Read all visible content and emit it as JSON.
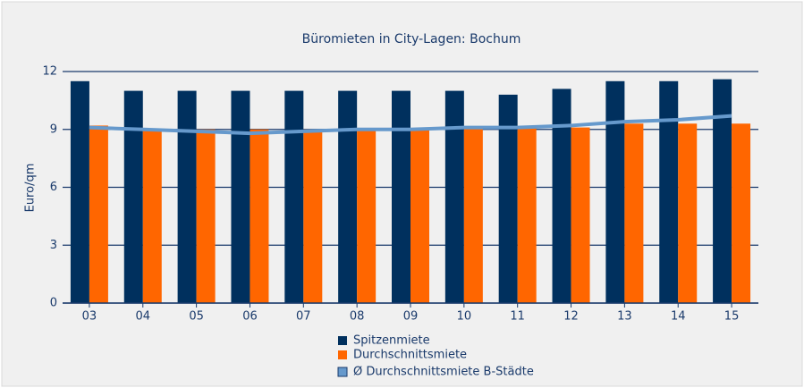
{
  "chart_data": {
    "type": "bar",
    "title": "Büromieten in City-Lagen: Bochum",
    "y_label": "Euro/qm",
    "categories": [
      "03",
      "04",
      "05",
      "06",
      "07",
      "08",
      "09",
      "10",
      "11",
      "12",
      "13",
      "14",
      "15"
    ],
    "series": [
      {
        "name": "Spitzenmiete",
        "color": "#00305e",
        "values": [
          11.5,
          11.0,
          11.0,
          11.0,
          11.0,
          11.0,
          11.0,
          11.0,
          10.8,
          11.1,
          11.5,
          11.5,
          11.6
        ]
      },
      {
        "name": "Durchschnittsmiete",
        "color": "#ff6600",
        "values": [
          9.2,
          9.0,
          9.0,
          9.0,
          9.0,
          9.0,
          9.0,
          9.1,
          9.1,
          9.1,
          9.3,
          9.3,
          9.3
        ]
      },
      {
        "name": "Ø Durchschnittsmiete B-Städte",
        "color": "#6699cc",
        "type": "line",
        "values": [
          9.1,
          9.0,
          8.9,
          8.8,
          8.9,
          9.0,
          9.0,
          9.1,
          9.1,
          9.2,
          9.4,
          9.5,
          9.7
        ]
      }
    ],
    "ylim": [
      0,
      12
    ],
    "yticks": [
      0,
      3,
      6,
      9,
      12
    ],
    "grid": true
  }
}
